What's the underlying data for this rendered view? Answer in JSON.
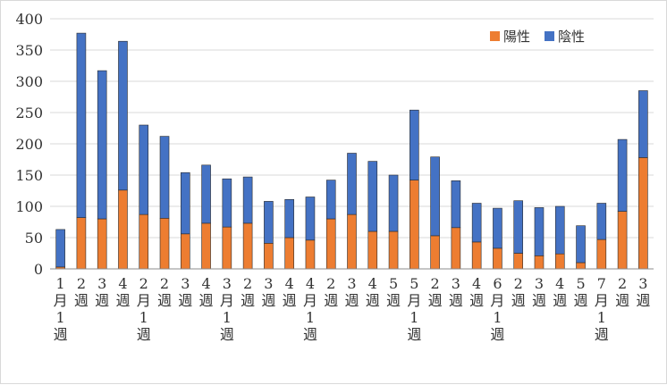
{
  "chart_data": {
    "type": "bar",
    "stacked": true,
    "categories": [
      "1月1週",
      "2週",
      "3週",
      "4週",
      "2月1週",
      "2週",
      "3週",
      "4週",
      "3月1週",
      "2週",
      "3週",
      "4週",
      "4月1週",
      "2週",
      "3週",
      "4週",
      "5週",
      "5月1週",
      "2週",
      "3週",
      "4週",
      "6月1週",
      "2週",
      "3週",
      "4週",
      "5週",
      "7月1週",
      "2週",
      "3週"
    ],
    "category_labels": [
      [
        "1",
        "月",
        "1",
        "週"
      ],
      [
        "2",
        "週"
      ],
      [
        "3",
        "週"
      ],
      [
        "4",
        "週"
      ],
      [
        "2",
        "月",
        "1",
        "週"
      ],
      [
        "2",
        "週"
      ],
      [
        "3",
        "週"
      ],
      [
        "4",
        "週"
      ],
      [
        "3",
        "月",
        "1",
        "週"
      ],
      [
        "2",
        "週"
      ],
      [
        "3",
        "週"
      ],
      [
        "4",
        "週"
      ],
      [
        "4",
        "月",
        "1",
        "週"
      ],
      [
        "2",
        "週"
      ],
      [
        "3",
        "週"
      ],
      [
        "4",
        "週"
      ],
      [
        "5",
        "週"
      ],
      [
        "5",
        "月",
        "1",
        "週"
      ],
      [
        "2",
        "週"
      ],
      [
        "3",
        "週"
      ],
      [
        "4",
        "週"
      ],
      [
        "6",
        "月",
        "1",
        "週"
      ],
      [
        "2",
        "週"
      ],
      [
        "3",
        "週"
      ],
      [
        "4",
        "週"
      ],
      [
        "5",
        "週"
      ],
      [
        "7",
        "月",
        "1",
        "週"
      ],
      [
        "2",
        "週"
      ],
      [
        "3",
        "週"
      ]
    ],
    "series": [
      {
        "name": "陽性",
        "color": "#ED7D31",
        "values": [
          3,
          82,
          80,
          126,
          87,
          81,
          56,
          73,
          67,
          73,
          41,
          50,
          46,
          80,
          87,
          60,
          60,
          142,
          53,
          66,
          43,
          33,
          25,
          21,
          24,
          10,
          47,
          92,
          178
        ]
      },
      {
        "name": "陰性",
        "color": "#4472C4",
        "values": [
          60,
          295,
          237,
          238,
          143,
          131,
          98,
          93,
          77,
          74,
          67,
          61,
          69,
          62,
          98,
          112,
          90,
          112,
          126,
          75,
          62,
          64,
          84,
          77,
          76,
          59,
          58,
          115,
          107
        ]
      }
    ],
    "ylim": [
      0,
      400
    ],
    "yticks": [
      0,
      50,
      100,
      150,
      200,
      250,
      300,
      350,
      400
    ],
    "grid": true,
    "legend": "top-right"
  }
}
